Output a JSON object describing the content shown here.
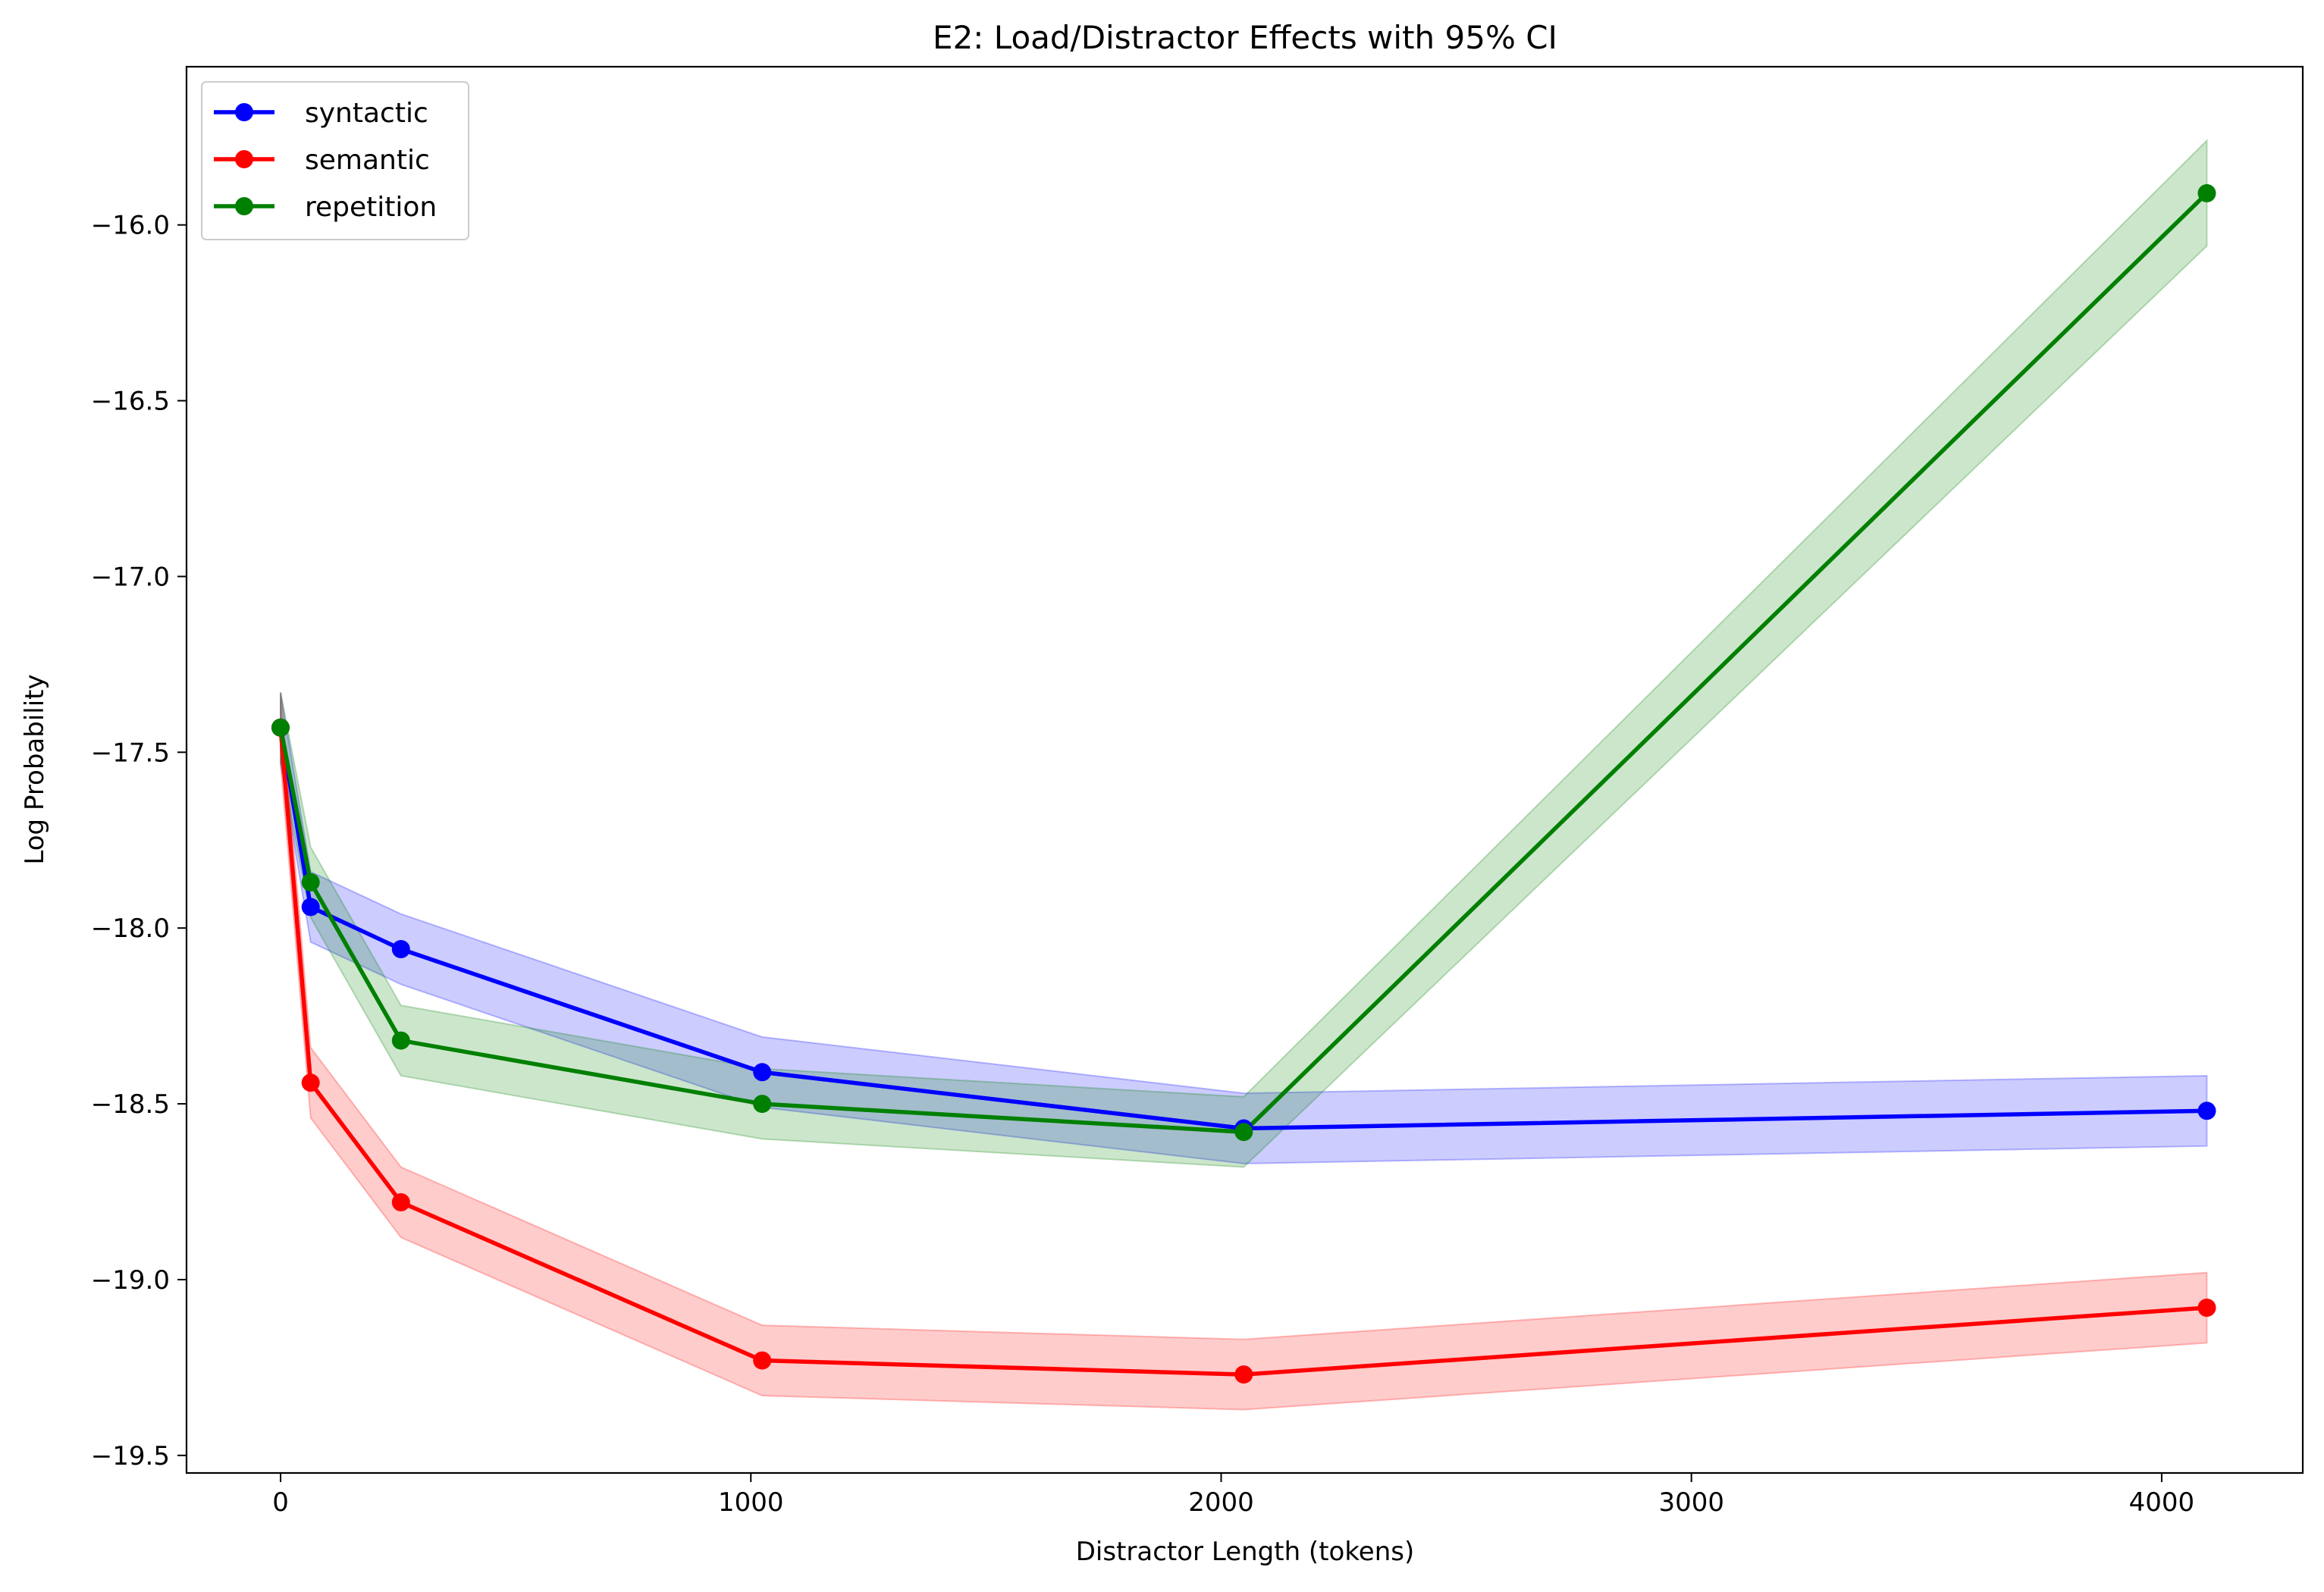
{
  "chart_data": {
    "type": "line",
    "title": "E2: Load/Distractor Effects with 95% CI",
    "xlabel": "Distractor Length (tokens)",
    "ylabel": "Log Probability",
    "x": [
      0,
      64,
      256,
      1024,
      2048,
      4096
    ],
    "xlim": [
      -200,
      4300
    ],
    "ylim": [
      -19.55,
      -15.55
    ],
    "xticks": [
      0,
      1000,
      2000,
      3000,
      4000
    ],
    "xtick_labels": [
      "0",
      "1000",
      "2000",
      "3000",
      "4000"
    ],
    "yticks": [
      -19.5,
      -19.0,
      -18.5,
      -18.0,
      -17.5,
      -17.0,
      -16.5,
      -16.0
    ],
    "ytick_labels": [
      "−19.5",
      "−19.0",
      "−18.5",
      "−18.0",
      "−17.5",
      "−17.0",
      "−16.5",
      "−16.0"
    ],
    "grid": false,
    "legend_position": "upper-left",
    "confidence_level": "95% CI",
    "series": [
      {
        "name": "syntactic",
        "color": "#0000ff",
        "values": [
          -17.43,
          -17.94,
          -18.06,
          -18.41,
          -18.57,
          -18.52
        ],
        "ci_lower": [
          -17.53,
          -18.04,
          -18.16,
          -18.51,
          -18.67,
          -18.62
        ],
        "ci_upper": [
          -17.33,
          -17.84,
          -17.96,
          -18.31,
          -18.47,
          -18.42
        ]
      },
      {
        "name": "semantic",
        "color": "#ff0000",
        "values": [
          -17.43,
          -18.44,
          -18.78,
          -19.23,
          -19.27,
          -19.08
        ],
        "ci_lower": [
          -17.53,
          -18.54,
          -18.88,
          -19.33,
          -19.37,
          -19.18
        ],
        "ci_upper": [
          -17.33,
          -18.34,
          -18.68,
          -19.13,
          -19.17,
          -18.98
        ]
      },
      {
        "name": "repetition",
        "color": "#008000",
        "values": [
          -17.43,
          -17.87,
          -18.32,
          -18.5,
          -18.58,
          -15.91
        ],
        "ci_lower": [
          -17.53,
          -17.97,
          -18.42,
          -18.6,
          -18.68,
          -16.06
        ],
        "ci_upper": [
          -17.33,
          -17.77,
          -18.22,
          -18.4,
          -18.48,
          -15.76
        ]
      }
    ]
  }
}
